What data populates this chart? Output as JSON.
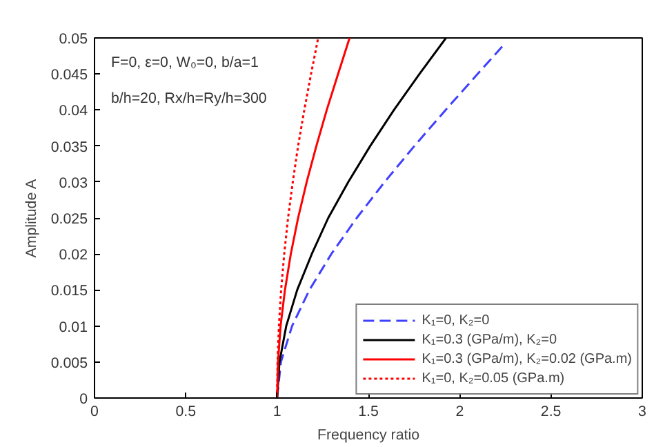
{
  "chart_data": {
    "type": "line",
    "xlabel": "Frequency ratio",
    "ylabel": "Amplitude A",
    "xlim": [
      0,
      3
    ],
    "ylim": [
      0,
      0.05
    ],
    "xticks": [
      0,
      0.5,
      1,
      1.5,
      2,
      2.5,
      3
    ],
    "yticks": [
      0,
      0.005,
      0.01,
      0.015,
      0.02,
      0.025,
      0.03,
      0.035,
      0.04,
      0.045,
      0.05
    ],
    "grid": false,
    "legend": "bottom right",
    "marker": "none",
    "annotations": [
      "F=0, ε=0, W₀=0, b/a=1",
      "b/h=20, Rx/h=Ry/h=300"
    ],
    "series": [
      {
        "name": "K₁=0, K₂=0",
        "color": "#4040ff",
        "line_style": "dashed",
        "x": [
          1,
          1.021,
          1.082,
          1.177,
          1.297,
          1.436,
          1.589,
          1.752,
          1.923,
          2.098,
          2.24
        ],
        "values": [
          0,
          0.005,
          0.01,
          0.015,
          0.02,
          0.025,
          0.03,
          0.035,
          0.04,
          0.045,
          0.049
        ]
      },
      {
        "name": "K₁=0.3 (GPa/m), K₂=0",
        "color": "#000000",
        "line_style": "solid",
        "x": [
          1,
          1.013,
          1.05,
          1.11,
          1.19,
          1.28,
          1.39,
          1.51,
          1.64,
          1.78,
          1.925
        ],
        "values": [
          0,
          0.005,
          0.01,
          0.015,
          0.02,
          0.025,
          0.03,
          0.035,
          0.04,
          0.045,
          0.05
        ]
      },
      {
        "name": "K₁=0.3 (GPa/m), K₂=0.02 (GPa.m)",
        "color": "#ff0000",
        "line_style": "solid",
        "x": [
          1,
          1.005,
          1.019,
          1.043,
          1.075,
          1.115,
          1.162,
          1.215,
          1.272,
          1.334,
          1.397
        ],
        "values": [
          0,
          0.005,
          0.01,
          0.015,
          0.02,
          0.025,
          0.03,
          0.035,
          0.04,
          0.045,
          0.05
        ]
      },
      {
        "name": "K₁=0, K₂=0.05 (GPa.m)",
        "color": "#ff0000",
        "line_style": "dotted",
        "x": [
          1,
          1.0025,
          1.01,
          1.022,
          1.039,
          1.06,
          1.086,
          1.115,
          1.149,
          1.186,
          1.225
        ],
        "values": [
          0,
          0.005,
          0.01,
          0.015,
          0.02,
          0.025,
          0.03,
          0.035,
          0.04,
          0.045,
          0.05
        ]
      }
    ]
  }
}
